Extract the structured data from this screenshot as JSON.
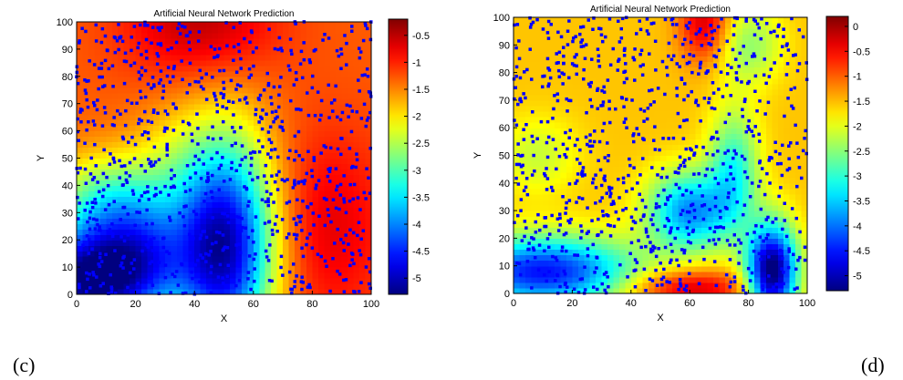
{
  "figure": {
    "panel_labels": [
      "(c)",
      "(d)"
    ]
  },
  "chart_data": [
    {
      "type": "heatmap",
      "title": "Artificial Neural Network Prediction",
      "xlabel": "X",
      "ylabel": "Y",
      "xlim": [
        0,
        100
      ],
      "ylim": [
        0,
        100
      ],
      "xticks": [
        0,
        20,
        40,
        60,
        80,
        100
      ],
      "yticks": [
        0,
        10,
        20,
        30,
        40,
        50,
        60,
        70,
        80,
        90,
        100
      ],
      "colorbar": {
        "colormap": "jet",
        "range": [
          -5.3,
          -0.2
        ],
        "ticks": [
          -0.5,
          -1,
          -1.5,
          -2,
          -2.5,
          -3,
          -3.5,
          -4,
          -4.5,
          -5
        ],
        "tick_labels": [
          "-0.5",
          "-1",
          "-1.5",
          "-2",
          "-2.5",
          "-3",
          "-3.5",
          "-4",
          "-4.5",
          "-5"
        ]
      },
      "overlay": {
        "marker": "dots",
        "color": "#0000ff"
      },
      "field": {
        "base": -1.3,
        "blobs": [
          {
            "x": 42,
            "y": 100,
            "amp": 0.8,
            "sx": 18,
            "sy": 15
          },
          {
            "x": 85,
            "y": 25,
            "amp": 0.6,
            "sx": 15,
            "sy": 25
          },
          {
            "x": 50,
            "y": 18,
            "amp": -3.8,
            "sx": 12,
            "sy": 28
          },
          {
            "x": 3,
            "y": 5,
            "amp": -3.8,
            "sx": 16,
            "sy": 14
          },
          {
            "x": 22,
            "y": 15,
            "amp": -1.8,
            "sx": 12,
            "sy": 15
          },
          {
            "x": 10,
            "y": 35,
            "amp": -1.4,
            "sx": 14,
            "sy": 12
          },
          {
            "x": 30,
            "y": 50,
            "amp": -0.4,
            "sx": 10,
            "sy": 15
          }
        ]
      }
    },
    {
      "type": "heatmap",
      "title": "Artificial Neural Network Prediction",
      "xlabel": "X",
      "ylabel": "Y",
      "xlim": [
        0,
        100
      ],
      "ylim": [
        0,
        100
      ],
      "xticks": [
        0,
        20,
        40,
        60,
        80,
        100
      ],
      "yticks": [
        0,
        10,
        20,
        30,
        40,
        50,
        60,
        70,
        80,
        90,
        100
      ],
      "colorbar": {
        "colormap": "jet",
        "range": [
          -5.3,
          0.2
        ],
        "ticks": [
          0,
          -0.5,
          -1,
          -1.5,
          -2,
          -2.5,
          -3,
          -3.5,
          -4,
          -4.5,
          -5
        ],
        "tick_labels": [
          "0",
          "-0.5",
          "-1",
          "-1.5",
          "-2",
          "-2.5",
          "-3",
          "-3.5",
          "-4",
          "-4.5",
          "-5"
        ]
      },
      "overlay": {
        "marker": "dots",
        "color": "#0000ff"
      },
      "field": {
        "base": -1.55,
        "blobs": [
          {
            "x": 65,
            "y": 98,
            "amp": 1.3,
            "sx": 6,
            "sy": 10
          },
          {
            "x": 60,
            "y": 2,
            "amp": 1.4,
            "sx": 15,
            "sy": 5
          },
          {
            "x": 88,
            "y": 8,
            "amp": -4.0,
            "sx": 6,
            "sy": 12
          },
          {
            "x": 10,
            "y": 8,
            "amp": -3.0,
            "sx": 22,
            "sy": 9
          },
          {
            "x": 60,
            "y": 30,
            "amp": -2.3,
            "sx": 10,
            "sy": 10
          },
          {
            "x": 75,
            "y": 45,
            "amp": -1.5,
            "sx": 6,
            "sy": 15
          },
          {
            "x": 80,
            "y": 90,
            "amp": -0.9,
            "sx": 8,
            "sy": 10
          },
          {
            "x": 8,
            "y": 50,
            "amp": -0.6,
            "sx": 10,
            "sy": 10
          }
        ]
      }
    }
  ]
}
